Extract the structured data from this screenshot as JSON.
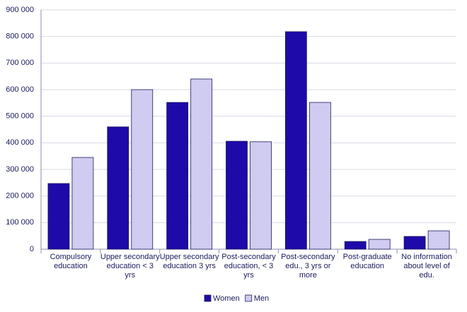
{
  "chart_data": {
    "type": "bar",
    "categories": [
      "Compulsory education",
      "Upper secondary education < 3 yrs",
      "Upper secondary education 3 yrs",
      "Post-secondary education, < 3 yrs",
      "Post-secondary edu., 3 yrs or more",
      "Post-graduate education",
      "No information about level of edu."
    ],
    "series": [
      {
        "name": "Women",
        "color": "#1e0aa8",
        "values": [
          247000,
          460000,
          552000,
          406000,
          818000,
          29000,
          48000
        ]
      },
      {
        "name": "Men",
        "color": "#d0cbf0",
        "values": [
          345000,
          600000,
          640000,
          404000,
          552000,
          37000,
          69000
        ]
      }
    ],
    "ylim": [
      0,
      900000
    ],
    "yticks": [
      0,
      {
        "value": 100000,
        "label": "100 000"
      },
      {
        "value": 200000,
        "label": "200 000"
      },
      {
        "value": 300000,
        "label": "300 000"
      },
      {
        "value": 400000,
        "label": "400 000"
      },
      {
        "value": 500000,
        "label": "500 000"
      },
      {
        "value": 600000,
        "label": "600 000"
      },
      {
        "value": 700000,
        "label": "700 000"
      },
      {
        "value": 800000,
        "label": "800 000"
      },
      {
        "value": 900000,
        "label": "900 000"
      }
    ],
    "grid": true,
    "legend": "bottom"
  }
}
